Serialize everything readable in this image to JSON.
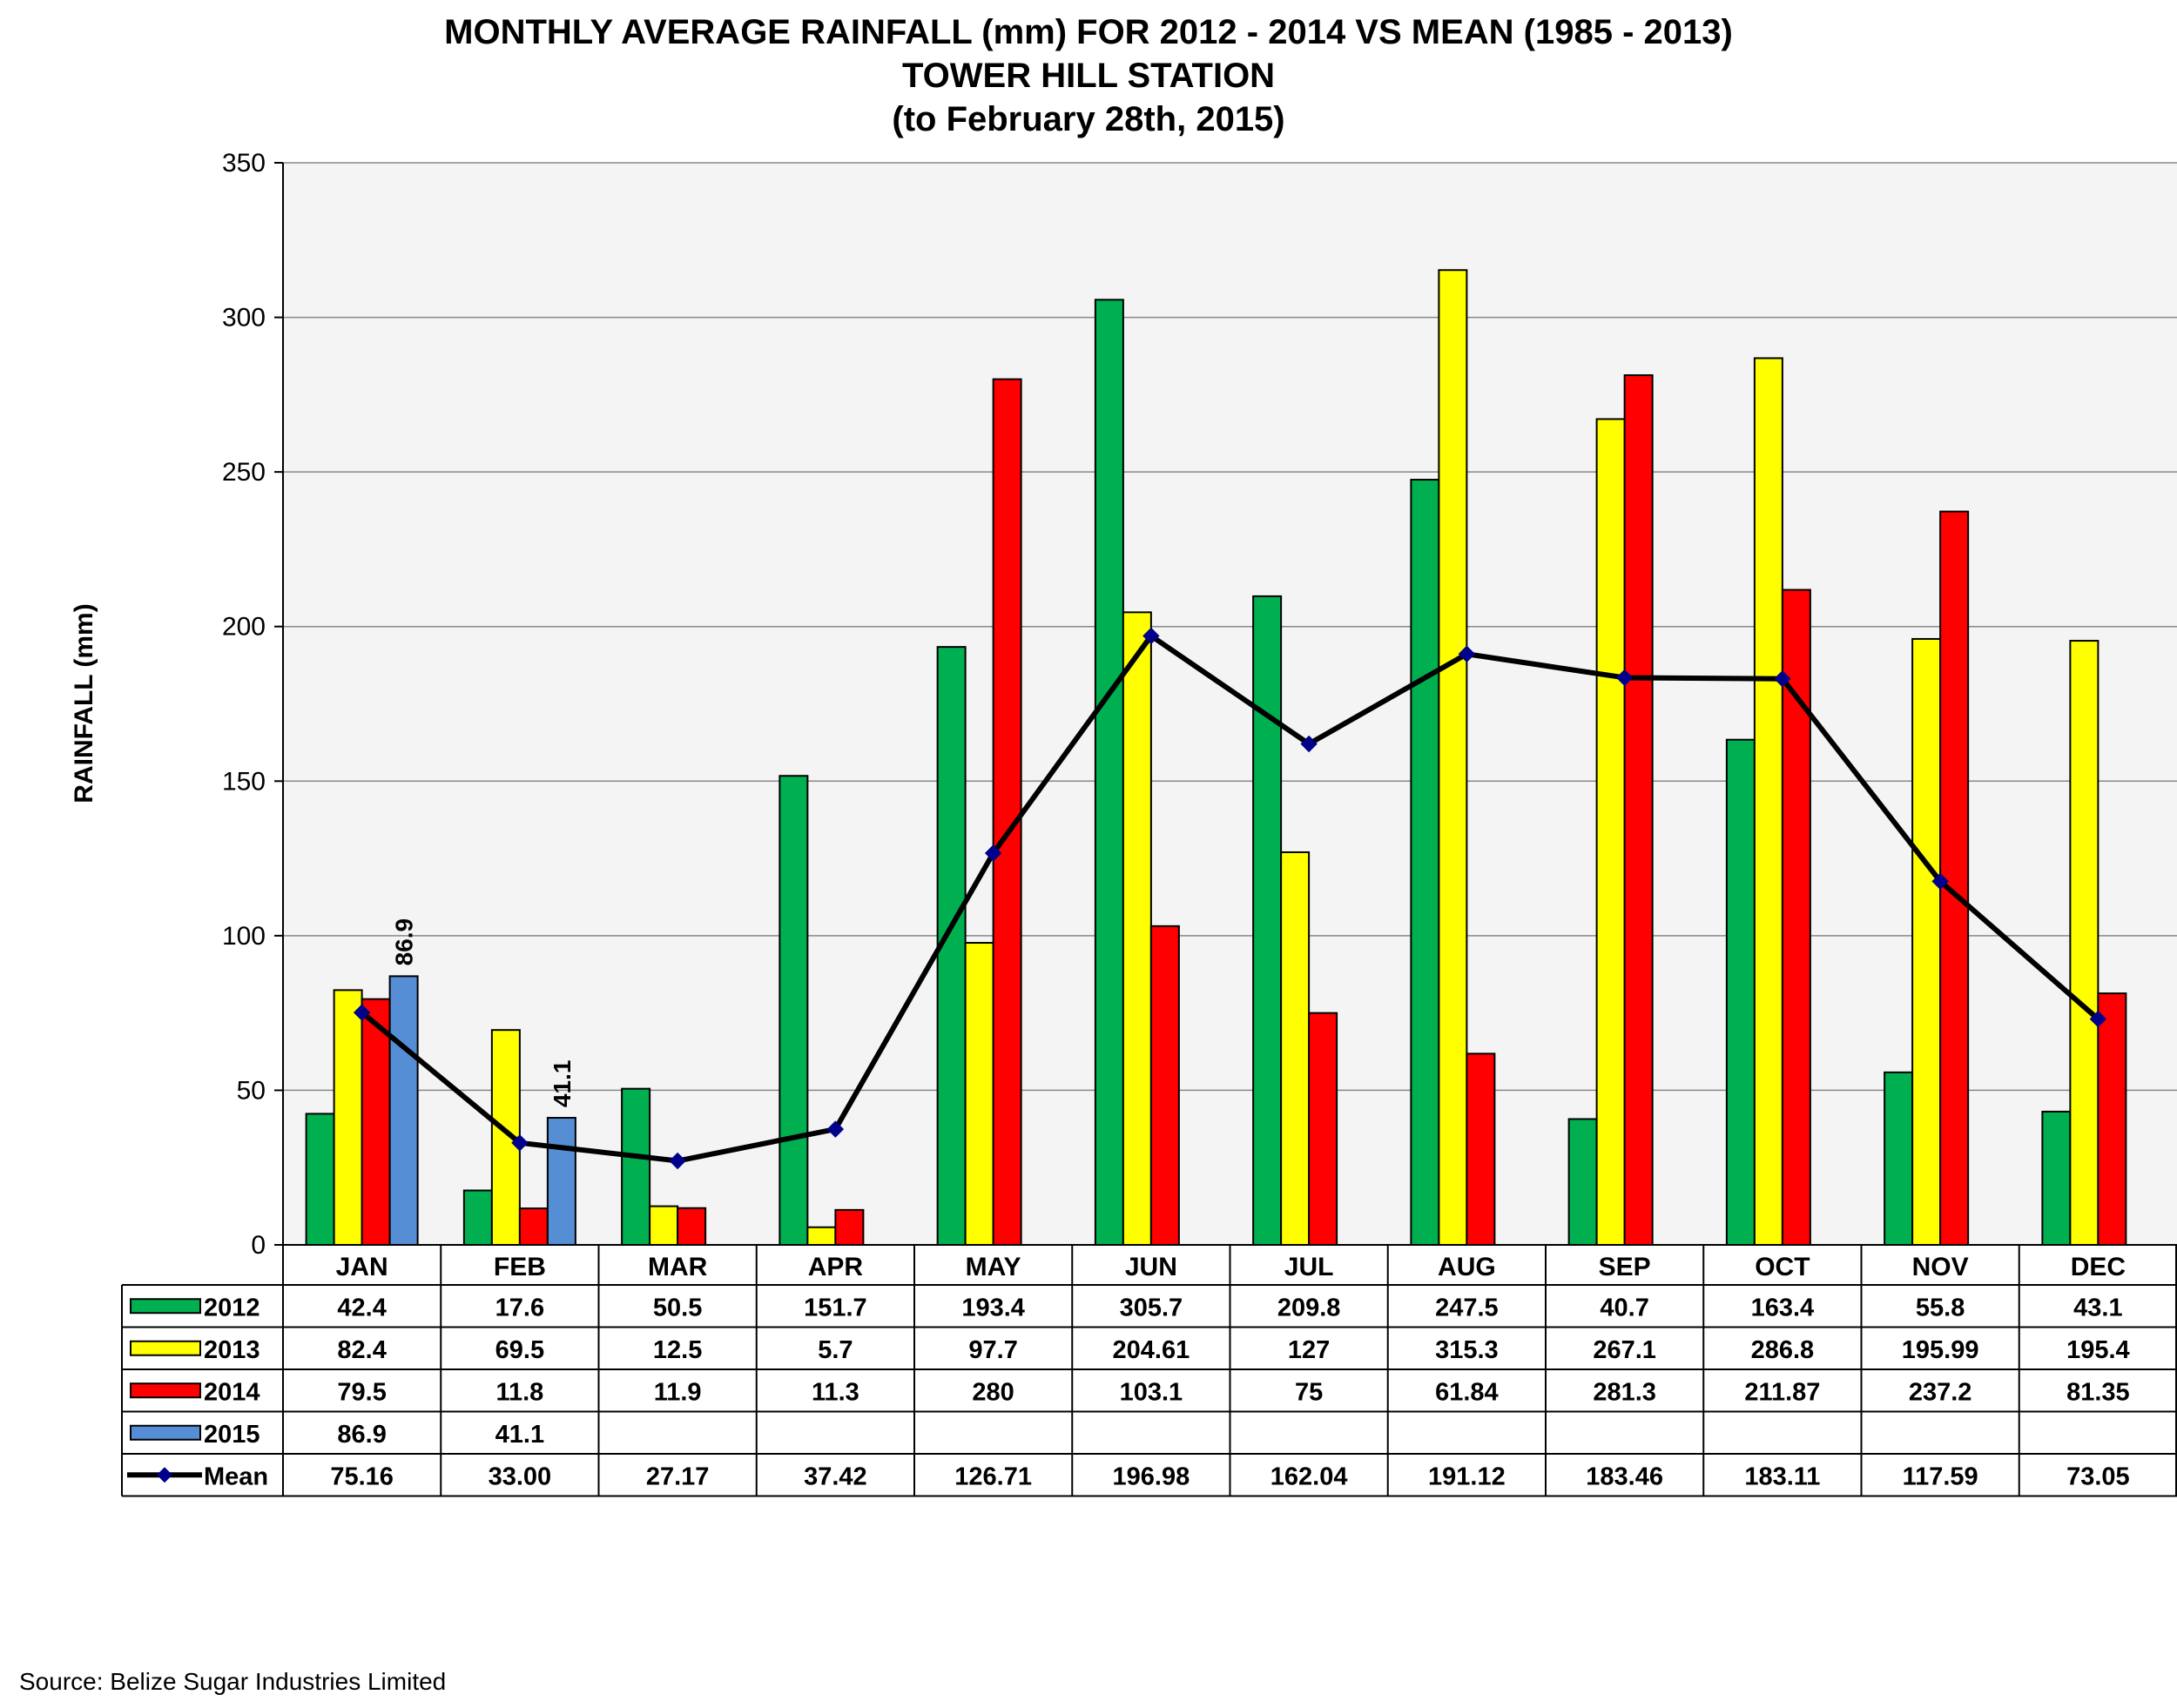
{
  "chart_data": {
    "type": "bar",
    "title": "MONTHLY AVERAGE RAINFALL (mm) FOR 2012 - 2014 VS MEAN (1985 - 2013)",
    "subtitle": "TOWER HILL STATION",
    "subtitle2": "(to February 28th, 2015)",
    "xlabel": "",
    "ylabel": "RAINFALL (mm)",
    "ylim": [
      0,
      350
    ],
    "yticks": [
      "0",
      "50",
      "100",
      "150",
      "200",
      "250",
      "300",
      "350"
    ],
    "grid": true,
    "legend": "data-table-left",
    "categories": [
      "JAN",
      "FEB",
      "MAR",
      "APR",
      "MAY",
      "JUN",
      "JUL",
      "AUG",
      "SEP",
      "OCT",
      "NOV",
      "DEC"
    ],
    "series": [
      {
        "name": "2012",
        "kind": "bar",
        "color": "#00b050",
        "values": [
          42.4,
          17.6,
          50.5,
          151.7,
          193.4,
          305.7,
          209.8,
          247.5,
          40.7,
          163.4,
          55.8,
          43.1
        ],
        "labels": [
          "42.4",
          "17.6",
          "50.5",
          "151.7",
          "193.4",
          "305.7",
          "209.8",
          "247.5",
          "40.7",
          "163.4",
          "55.8",
          "43.1"
        ]
      },
      {
        "name": "2013",
        "kind": "bar",
        "color": "#ffff00",
        "values": [
          82.4,
          69.5,
          12.5,
          5.7,
          97.7,
          204.61,
          127,
          315.3,
          267.1,
          286.8,
          195.99,
          195.4
        ],
        "labels": [
          "82.4",
          "69.5",
          "12.5",
          "5.7",
          "97.7",
          "204.61",
          "127",
          "315.3",
          "267.1",
          "286.8",
          "195.99",
          "195.4"
        ]
      },
      {
        "name": "2014",
        "kind": "bar",
        "color": "#ff0000",
        "values": [
          79.5,
          11.8,
          11.9,
          11.3,
          280,
          103.1,
          75,
          61.84,
          281.3,
          211.87,
          237.2,
          81.35
        ],
        "labels": [
          "79.5",
          "11.8",
          "11.9",
          "11.3",
          "280",
          "103.1",
          "75",
          "61.84",
          "281.3",
          "211.87",
          "237.2",
          "81.35"
        ]
      },
      {
        "name": "2015",
        "kind": "bar",
        "color": "#558ed5",
        "values": [
          86.9,
          41.1,
          null,
          null,
          null,
          null,
          null,
          null,
          null,
          null,
          null,
          null
        ],
        "labels": [
          "86.9",
          "41.1",
          "",
          "",
          "",
          "",
          "",
          "",
          "",
          "",
          "",
          ""
        ]
      },
      {
        "name": "Mean",
        "kind": "line",
        "color": "#000000",
        "marker_color": "#00008b",
        "values": [
          75.16,
          33.0,
          27.17,
          37.42,
          126.71,
          196.98,
          162.04,
          191.12,
          183.46,
          183.11,
          117.59,
          73.05
        ],
        "labels": [
          "75.16",
          "33.00",
          "27.17",
          "37.42",
          "126.71",
          "196.98",
          "162.04",
          "191.12",
          "183.46",
          "183.11",
          "117.59",
          "73.05"
        ]
      }
    ],
    "data_labels": [
      {
        "series": "2015",
        "category": "JAN",
        "text": "86.9"
      },
      {
        "series": "2015",
        "category": "FEB",
        "text": "41.1"
      }
    ]
  },
  "source": "Source: Belize Sugar Industries Limited"
}
